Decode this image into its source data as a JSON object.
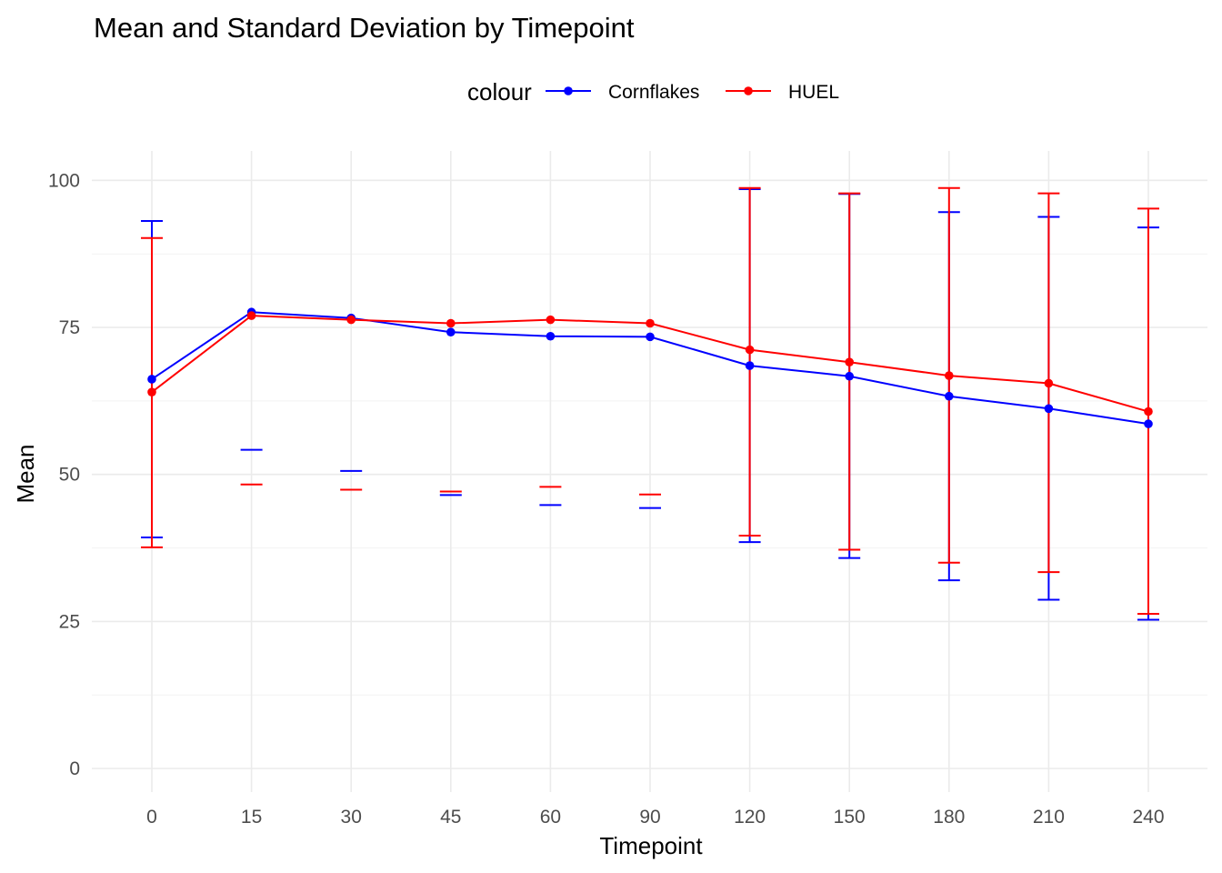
{
  "chart_data": {
    "type": "line",
    "title": "Mean and Standard Deviation by Timepoint",
    "xlabel": "Timepoint",
    "ylabel": "Mean",
    "categories": [
      "0",
      "15",
      "30",
      "45",
      "60",
      "90",
      "120",
      "150",
      "180",
      "210",
      "240"
    ],
    "ylim": [
      -4,
      105
    ],
    "yticks": [
      0,
      25,
      50,
      75,
      100
    ],
    "grid": true,
    "legend": {
      "title": "colour",
      "position": "top"
    },
    "series": [
      {
        "name": "Cornflakes",
        "color": "#0000ff",
        "mean": [
          66.2,
          77.6,
          76.6,
          74.2,
          73.5,
          73.4,
          68.5,
          66.7,
          63.3,
          61.2,
          58.6
        ],
        "lower": [
          39.3,
          null,
          null,
          46.5,
          44.8,
          44.3,
          38.5,
          35.8,
          32.0,
          28.7,
          25.3
        ],
        "upper": [
          93.1,
          54.2,
          50.6,
          null,
          null,
          null,
          98.5,
          97.7,
          94.6,
          93.8,
          92.0
        ]
      },
      {
        "name": "HUEL",
        "color": "#ff0000",
        "mean": [
          64.0,
          77.0,
          76.3,
          75.7,
          76.3,
          75.7,
          71.2,
          69.1,
          66.8,
          65.5,
          60.7
        ],
        "lower": [
          37.6,
          null,
          null,
          47.1,
          47.9,
          46.6,
          39.6,
          37.2,
          35.0,
          33.4,
          26.3
        ],
        "upper": [
          90.2,
          48.3,
          47.4,
          null,
          null,
          null,
          98.7,
          97.8,
          98.7,
          97.8,
          95.2
        ]
      }
    ]
  }
}
